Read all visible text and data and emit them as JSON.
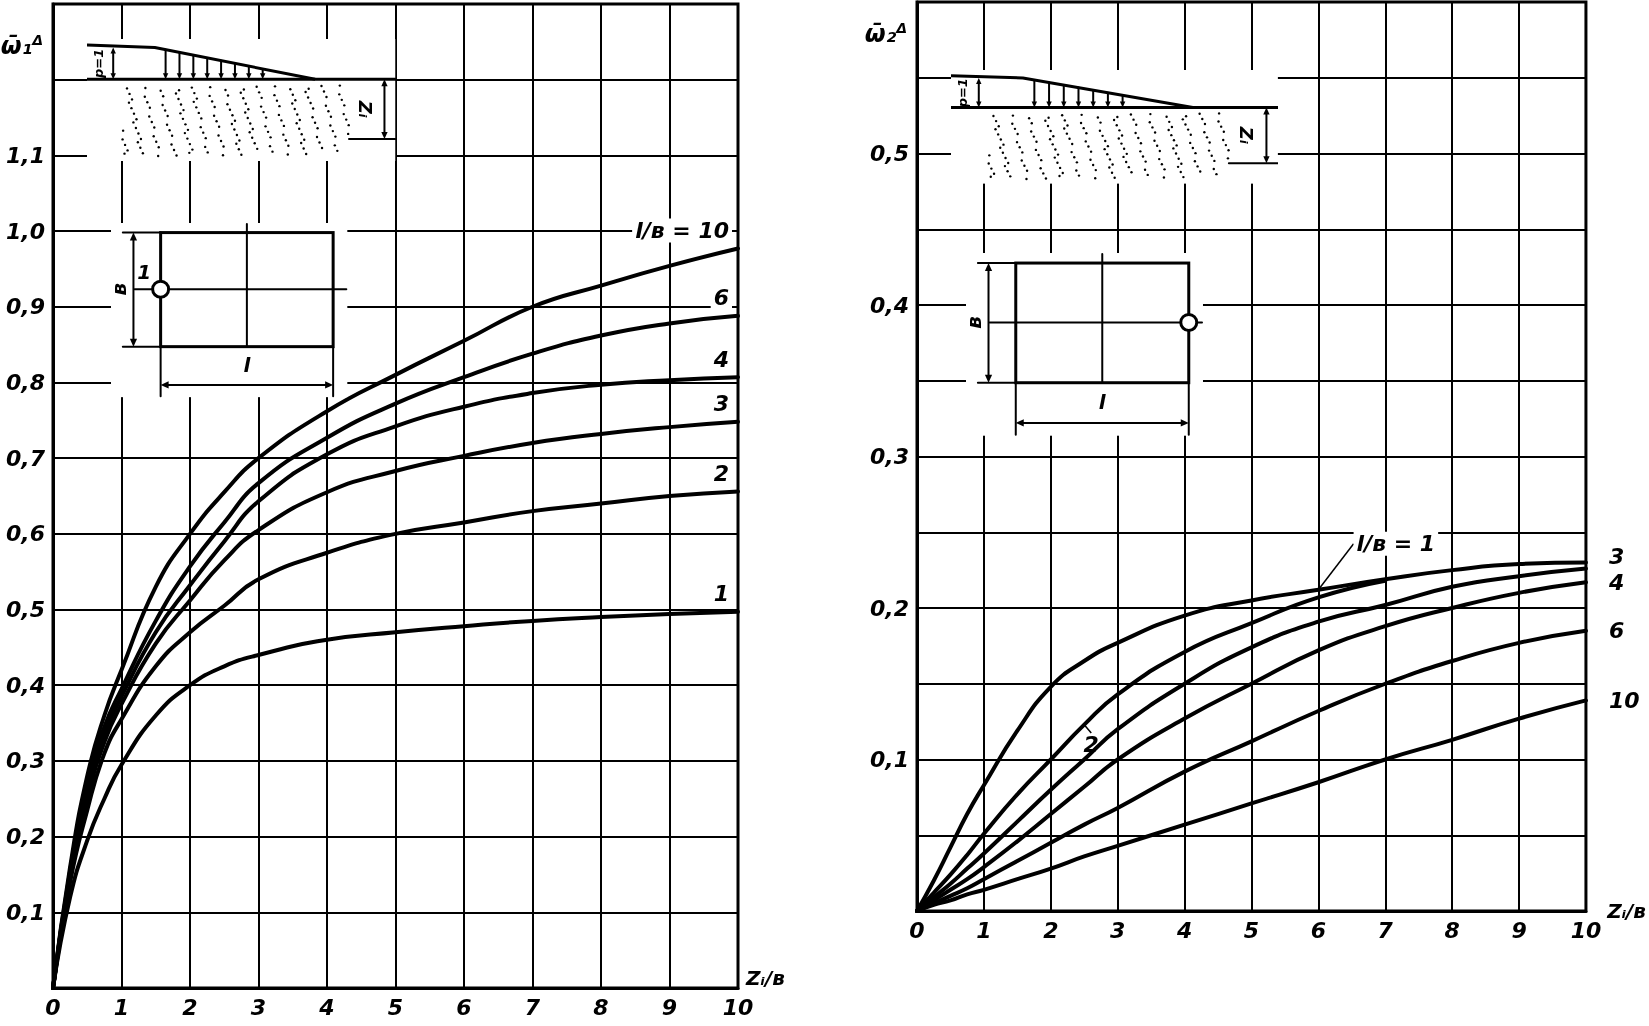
{
  "chart_data": [
    {
      "type": "line",
      "ylabel": "ω̄₁$^{Δ}$",
      "xlabel": "Zᵢ/в",
      "annotations": [
        "p=1",
        "Zᵢ",
        "в",
        "l",
        "1"
      ],
      "x": [
        0,
        0.25,
        0.5,
        0.75,
        1,
        1.5,
        2,
        2.5,
        3,
        4,
        5,
        6,
        7,
        8,
        9,
        10
      ],
      "series": [
        {
          "name": "l/в = 10",
          "color": "#000000",
          "values": [
            0,
            0.16,
            0.28,
            0.36,
            0.42,
            0.53,
            0.6,
            0.655,
            0.7,
            0.762,
            0.81,
            0.855,
            0.9,
            0.928,
            0.954,
            0.977
          ]
        },
        {
          "name": "6",
          "color": "#000000",
          "values": [
            0,
            0.155,
            0.27,
            0.345,
            0.395,
            0.485,
            0.557,
            0.615,
            0.667,
            0.727,
            0.772,
            0.807,
            0.838,
            0.862,
            0.878,
            0.888
          ]
        },
        {
          "name": "4",
          "color": "#000000",
          "values": [
            0,
            0.15,
            0.26,
            0.335,
            0.385,
            0.47,
            0.532,
            0.59,
            0.643,
            0.705,
            0.742,
            0.768,
            0.786,
            0.797,
            0.803,
            0.807
          ]
        },
        {
          "name": "3",
          "color": "#000000",
          "values": [
            0,
            0.148,
            0.25,
            0.325,
            0.375,
            0.455,
            0.512,
            0.565,
            0.605,
            0.655,
            0.683,
            0.703,
            0.72,
            0.732,
            0.741,
            0.748
          ]
        },
        {
          "name": "2",
          "color": "#000000",
          "values": [
            0,
            0.14,
            0.235,
            0.31,
            0.355,
            0.425,
            0.47,
            0.505,
            0.54,
            0.575,
            0.6,
            0.615,
            0.63,
            0.64,
            0.65,
            0.656
          ]
        },
        {
          "name": "1",
          "color": "#000000",
          "values": [
            0,
            0.12,
            0.195,
            0.25,
            0.295,
            0.36,
            0.4,
            0.425,
            0.44,
            0.46,
            0.47,
            0.478,
            0.485,
            0.49,
            0.494,
            0.497
          ]
        }
      ],
      "xlim": [
        0,
        10
      ],
      "xticks": [
        0,
        1,
        2,
        3,
        4,
        5,
        6,
        7,
        8,
        9,
        10
      ],
      "ylim": [
        0,
        1.3
      ],
      "yticks": [
        {
          "value": 0,
          "label": null
        },
        {
          "value": 0.1,
          "label": "0,1"
        },
        {
          "value": 0.2,
          "label": "0,2"
        },
        {
          "value": 0.3,
          "label": "0,3"
        },
        {
          "value": 0.4,
          "label": "0,4"
        },
        {
          "value": 0.5,
          "label": "0,5"
        },
        {
          "value": 0.6,
          "label": "0,6"
        },
        {
          "value": 0.7,
          "label": "0,7"
        },
        {
          "value": 0.8,
          "label": "0,8"
        },
        {
          "value": 0.9,
          "label": "0,9"
        },
        {
          "value": 1.0,
          "label": "1,0"
        },
        {
          "value": 1.1,
          "label": "1,1"
        },
        {
          "value": 1.2,
          "label": null
        }
      ],
      "grid": true
    },
    {
      "type": "line",
      "ylabel": "ω̄₂$^{Δ}$",
      "xlabel": "Zᵢ/в",
      "annotations": [
        "p=1",
        "Zᵢ",
        "в",
        "l"
      ],
      "x": [
        0,
        0.25,
        0.5,
        0.75,
        1,
        1.5,
        2,
        2.5,
        3,
        4,
        5,
        6,
        7,
        8,
        9,
        10
      ],
      "series": [
        {
          "name": "l/в = 1",
          "color": "#000000",
          "values": [
            0,
            0.02,
            0.042,
            0.064,
            0.083,
            0.119,
            0.148,
            0.165,
            0.177,
            0.195,
            0.205,
            0.212,
            0.219,
            0.225,
            0.229,
            0.23
          ]
        },
        {
          "name": "2",
          "color": "#000000",
          "values": [
            0,
            0.012,
            0.024,
            0.037,
            0.051,
            0.077,
            0.1,
            0.123,
            0.143,
            0.171,
            0.19,
            0.207,
            0.218,
            null,
            null,
            null
          ]
        },
        {
          "name": "3",
          "color": "#000000",
          "values": [
            0,
            0.009,
            0.018,
            0.028,
            0.038,
            0.059,
            0.08,
            0.1,
            0.12,
            0.15,
            0.174,
            0.191,
            0.202,
            0.214,
            0.221,
            0.226
          ]
        },
        {
          "name": "4",
          "color": "#000000",
          "values": [
            0,
            0.007,
            0.014,
            0.021,
            0.029,
            0.046,
            0.064,
            0.082,
            0.1,
            0.127,
            0.15,
            0.172,
            0.188,
            0.2,
            0.21,
            0.217
          ]
        },
        {
          "name": "6",
          "color": "#000000",
          "values": [
            0,
            0.005,
            0.01,
            0.015,
            0.021,
            0.033,
            0.045,
            0.057,
            0.068,
            0.092,
            0.112,
            0.132,
            0.15,
            0.165,
            0.177,
            0.185
          ]
        },
        {
          "name": "10",
          "color": "#000000",
          "values": [
            0,
            0.004,
            0.007,
            0.011,
            0.014,
            0.021,
            0.028,
            0.036,
            0.043,
            0.057,
            0.071,
            0.085,
            0.1,
            0.113,
            0.127,
            0.139
          ]
        }
      ],
      "xlim": [
        0,
        10
      ],
      "xticks": [
        0,
        1,
        2,
        3,
        4,
        5,
        6,
        7,
        8,
        9,
        10
      ],
      "ylim": [
        0,
        0.6
      ],
      "yticks": [
        {
          "value": 0,
          "label": null
        },
        {
          "value": 0.05,
          "label": null
        },
        {
          "value": 0.1,
          "label": "0,1"
        },
        {
          "value": 0.15,
          "label": null
        },
        {
          "value": 0.2,
          "label": "0,2"
        },
        {
          "value": 0.25,
          "label": null
        },
        {
          "value": 0.3,
          "label": "0,3"
        },
        {
          "value": 0.35,
          "label": null
        },
        {
          "value": 0.4,
          "label": "0,4"
        },
        {
          "value": 0.45,
          "label": null
        },
        {
          "value": 0.5,
          "label": "0,5"
        },
        {
          "value": 0.55,
          "label": null
        }
      ],
      "grid": true
    }
  ]
}
